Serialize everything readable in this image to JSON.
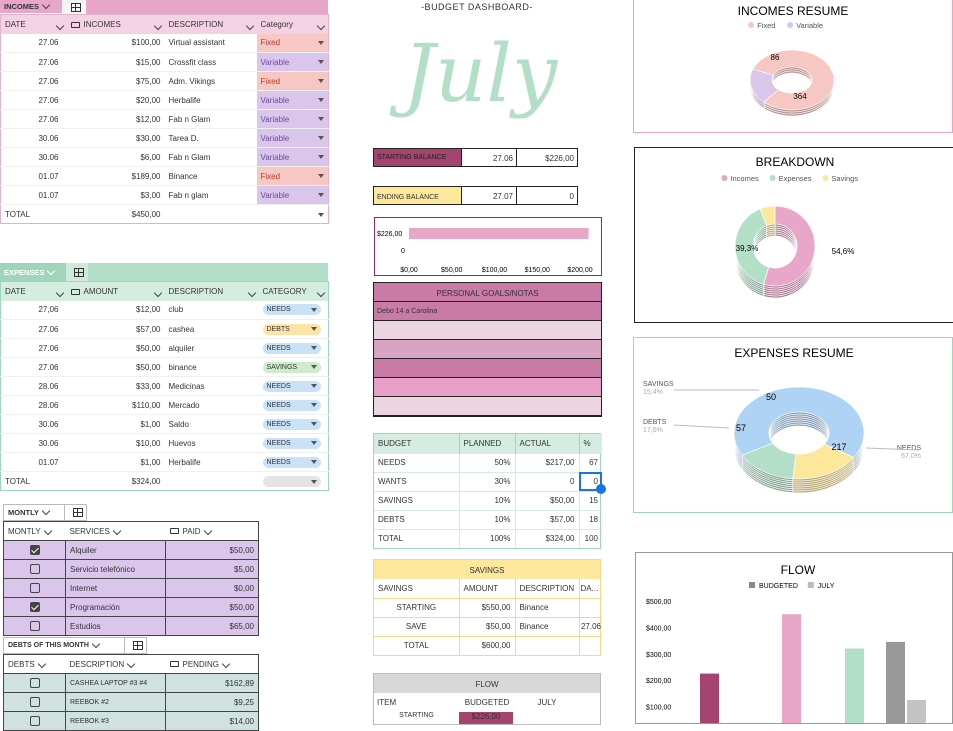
{
  "incomes": {
    "tab": "INCOMES",
    "headers": [
      "DATE",
      "INCOMES",
      "DESCRIPTION",
      "Category"
    ],
    "rows": [
      {
        "date": "27.06",
        "amount": "$100,00",
        "desc": "Virtual assistant",
        "cat": "Fixed"
      },
      {
        "date": "27.06",
        "amount": "$15,00",
        "desc": "Crossfit class",
        "cat": "Variable"
      },
      {
        "date": "27.06",
        "amount": "$75,00",
        "desc": "Adm. Vikings",
        "cat": "Fixed"
      },
      {
        "date": "27.06",
        "amount": "$20,00",
        "desc": "Herbalife",
        "cat": "Variable"
      },
      {
        "date": "27.06",
        "amount": "$12,00",
        "desc": "Fab n Glam",
        "cat": "Variable"
      },
      {
        "date": "30.06",
        "amount": "$30,00",
        "desc": "Tarea D.",
        "cat": "Variable"
      },
      {
        "date": "30.06",
        "amount": "$6,00",
        "desc": "Fab n Glam",
        "cat": "Variable"
      },
      {
        "date": "01.07",
        "amount": "$189,00",
        "desc": "Binance",
        "cat": "Fixed"
      },
      {
        "date": "01.07",
        "amount": "$3,00",
        "desc": "Fab n glam",
        "cat": "Variable"
      }
    ],
    "total_label": "TOTAL",
    "total": "$450,00"
  },
  "expenses": {
    "tab": "EXPENSES",
    "headers": [
      "DATE",
      "AMOUNT",
      "DESCRIPTION",
      "CATEGORY"
    ],
    "rows": [
      {
        "date": "27,06",
        "amount": "$12,00",
        "desc": "club",
        "cat": "NEEDS"
      },
      {
        "date": "27.06",
        "amount": "$57,00",
        "desc": "cashea",
        "cat": "DEBTS"
      },
      {
        "date": "27.06",
        "amount": "$50,00",
        "desc": "alquiler",
        "cat": "NEEDS"
      },
      {
        "date": "27.06",
        "amount": "$50,00",
        "desc": "binance",
        "cat": "SAVINGS"
      },
      {
        "date": "28.06",
        "amount": "$33,00",
        "desc": "Medicinas",
        "cat": "NEEDS"
      },
      {
        "date": "28.06",
        "amount": "$110,00",
        "desc": "Mercado",
        "cat": "NEEDS"
      },
      {
        "date": "30.06",
        "amount": "$1,00",
        "desc": "Saldo",
        "cat": "NEEDS"
      },
      {
        "date": "30.06",
        "amount": "$10,00",
        "desc": "Huevos",
        "cat": "NEEDS"
      },
      {
        "date": "01.07",
        "amount": "$1,00",
        "desc": "Herbalife",
        "cat": "NEEDS"
      }
    ],
    "total_label": "TOTAL",
    "total": "$324,00"
  },
  "monthly": {
    "tab": "MONTLY",
    "headers": [
      "MONTLY",
      "SERVICES",
      "PAID"
    ],
    "rows": [
      {
        "checked": true,
        "service": "Alquiler",
        "paid": "$50,00"
      },
      {
        "checked": false,
        "service": "Servicio telefónico",
        "paid": "$5,00"
      },
      {
        "checked": false,
        "service": "Internet",
        "paid": "$0,00"
      },
      {
        "checked": true,
        "service": "Programación",
        "paid": "$50,00"
      },
      {
        "checked": false,
        "service": "Estudios",
        "paid": "$65,00"
      }
    ]
  },
  "debts": {
    "tab": "DEBTS OF THIS MONTH",
    "headers": [
      "DEBTS",
      "DESCRIPTION",
      "PENDING"
    ],
    "rows": [
      {
        "checked": false,
        "desc": "CASHEA LAPTOP #3 #4",
        "pending": "$162,89"
      },
      {
        "checked": false,
        "desc": "REEBOK #2",
        "pending": "$9,25"
      },
      {
        "checked": false,
        "desc": "REEBOK #3",
        "pending": "$14,00"
      }
    ]
  },
  "dashboard": {
    "title": "-BUDGET DASHBOARD-",
    "month": "July",
    "starting_label": "STARTING BALANCE",
    "starting_date": "27.06",
    "starting_value": "$226,00",
    "ending_label": "ENDING BALANCE",
    "ending_date": "27.07",
    "ending_value": "0"
  },
  "balance_chart": {
    "bar_label": "$226,00",
    "zero_label": "0",
    "value": 226,
    "max": 200,
    "ticks": [
      "$0,00",
      "$50,00",
      "$100,00",
      "$150,00",
      "$200,00"
    ]
  },
  "goals": {
    "title": "PERSONAL GOALS/NOTAS",
    "rows": [
      "Debo 14 a Carolina",
      "",
      "",
      "",
      "",
      ""
    ]
  },
  "budget": {
    "headers": [
      "BUDGET",
      "PLANNED",
      "ACTUAL",
      "%"
    ],
    "rows": [
      {
        "name": "NEEDS",
        "planned": "50%",
        "actual": "$217,00",
        "pct": "67"
      },
      {
        "name": "WANTS",
        "planned": "30%",
        "actual": "0",
        "pct": "0"
      },
      {
        "name": "SAVINGS",
        "planned": "10%",
        "actual": "$50,00",
        "pct": "15"
      },
      {
        "name": "DEBTS",
        "planned": "10%",
        "actual": "$57,00",
        "pct": "18"
      },
      {
        "name": "TOTAL",
        "planned": "100%",
        "actual": "$324,00",
        "pct": "100"
      }
    ]
  },
  "savings": {
    "title": "SAVINGS",
    "headers": [
      "SAVINGS",
      "AMOUNT",
      "DESCRIPTION",
      "DATE"
    ],
    "rows": [
      {
        "name": "STARTING",
        "amount": "$550,00",
        "desc": "Binance",
        "date": ""
      },
      {
        "name": "SAVE",
        "amount": "$50,00",
        "desc": "Binance",
        "date": "27.06"
      },
      {
        "name": "TOTAL",
        "amount": "$600,00",
        "desc": "",
        "date": ""
      }
    ]
  },
  "flow_table": {
    "title": "FLOW",
    "headers": [
      "ITEM",
      "BUDGETED",
      "JULY"
    ],
    "row_start": "STARTING",
    "row_start_value": "$226,00"
  },
  "colors": {
    "pink": "#e8a6c8",
    "mint": "#b3dfc8",
    "yellow": "#fde79a",
    "purple": "#d9c6ea",
    "blue": "#aed3f5",
    "plum": "#a4446f"
  },
  "chart_data": [
    {
      "type": "pie",
      "title": "INCOMES RESUME",
      "legend": [
        "Fixed",
        "Variable"
      ],
      "values": [
        364,
        86
      ],
      "labels": [
        "364",
        "86"
      ],
      "colors": [
        "#f7c7c3",
        "#d9c6ea"
      ]
    },
    {
      "type": "pie",
      "title": "BREAKDOWN",
      "legend": [
        "Incomes",
        "Expenses",
        "Savings"
      ],
      "values": [
        54.6,
        39.3,
        6.1
      ],
      "labels": [
        "54,6%",
        "39,3%",
        ""
      ],
      "colors": [
        "#e8a6c8",
        "#b3dfc8",
        "#fde79a"
      ]
    },
    {
      "type": "pie",
      "title": "EXPENSES RESUME",
      "values": [
        217,
        57,
        50
      ],
      "labels": [
        "217",
        "57",
        "50"
      ],
      "side_labels": [
        {
          "name": "NEEDS",
          "pct": "67,0%"
        },
        {
          "name": "DEBTS",
          "pct": "17,6%"
        },
        {
          "name": "SAVINGS",
          "pct": "15,4%"
        }
      ],
      "colors": [
        "#aed3f5",
        "#fde79a",
        "#b3dfc8"
      ]
    },
    {
      "type": "bar",
      "title": "FLOW",
      "legend": [
        "BUDGETED",
        "JULY"
      ],
      "ylim": [
        0,
        500
      ],
      "yticks": [
        "$100,00",
        "$200,00",
        "$300,00",
        "$400,00",
        "$500,00"
      ],
      "bars": [
        {
          "value": 225,
          "color": "#a4446f"
        },
        {
          "value": 450,
          "color": "#e8a6c8"
        },
        {
          "value": 320,
          "color": "#b3dfc8"
        },
        {
          "value": 345,
          "color": "#999999"
        },
        {
          "value": 125,
          "color": "#c3c3c3"
        }
      ]
    }
  ]
}
